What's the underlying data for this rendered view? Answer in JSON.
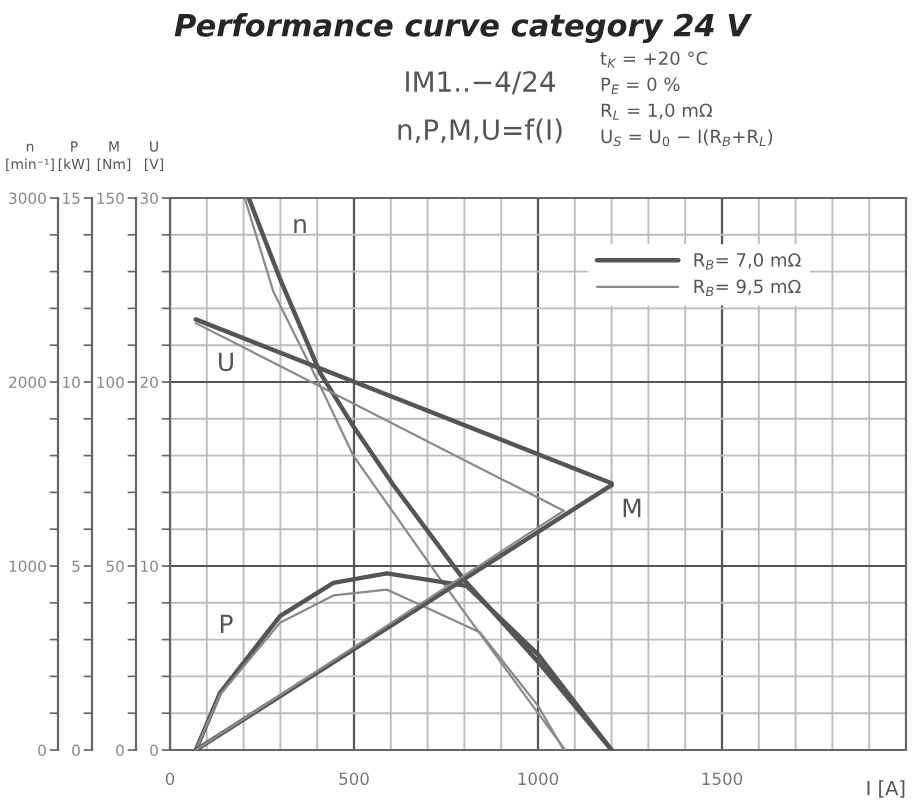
{
  "chart_data": [
    {
      "type": "line",
      "title": "Performance curve category 24 V",
      "xlabel": "I [A]",
      "ylabel": "n\n[min⁻¹]",
      "y2label": "P\n[kW]",
      "y3label": "M\n[Nm]",
      "xlim": [
        0,
        2000
      ],
      "xticks": [
        0,
        {
          "value": 100,
          "label": null
        },
        {
          "value": 200,
          "label": null
        },
        {
          "value": 300,
          "label": null
        },
        {
          "value": 400,
          "label": null
        },
        500,
        {
          "value": 600,
          "label": null
        },
        {
          "value": 700,
          "label": null
        },
        {
          "value": 800,
          "label": null
        },
        {
          "value": 900,
          "label": null
        },
        1000,
        {
          "value": 1100,
          "label": null
        },
        {
          "value": 1200,
          "label": null
        },
        {
          "value": 1300,
          "label": null
        },
        {
          "value": 1400,
          "label": null
        },
        1500,
        {
          "value": 1600,
          "label": null
        },
        {
          "value": 1700,
          "label": null
        },
        {
          "value": 1800,
          "label": null
        },
        {
          "value": 1900,
          "label": null
        },
        {
          "value": 2000,
          "label": null
        }
      ],
      "ylim": [
        0,
        3000
      ],
      "yticks": [
        0,
        {
          "value": 200,
          "label": null
        },
        {
          "value": 400,
          "label": null
        },
        {
          "value": 600,
          "label": null
        },
        {
          "value": 800,
          "label": null
        },
        1000,
        {
          "value": 1200,
          "label": null
        },
        {
          "value": 1400,
          "label": null
        },
        {
          "value": 1600,
          "label": null
        },
        {
          "value": 1800,
          "label": null
        },
        2000,
        {
          "value": 2200,
          "label": null
        },
        {
          "value": 2400,
          "label": null
        },
        {
          "value": 2600,
          "label": null
        },
        {
          "value": 2800,
          "label": null
        },
        3000
      ],
      "y2lim": [
        0,
        15
      ],
      "y2ticks": [
        0,
        {
          "value": 1,
          "label": null
        },
        {
          "value": 2,
          "label": null
        },
        {
          "value": 3,
          "label": null
        },
        {
          "value": 4,
          "label": null
        },
        5,
        {
          "value": 6,
          "label": null
        },
        {
          "value": 7,
          "label": null
        },
        {
          "value": 8,
          "label": null
        },
        {
          "value": 9,
          "label": null
        },
        10,
        {
          "value": 11,
          "label": null
        },
        {
          "value": 12,
          "label": null
        },
        {
          "value": 13,
          "label": null
        },
        {
          "value": 14,
          "label": null
        },
        15
      ],
      "y3lim": [
        0,
        150
      ],
      "y3ticks": [
        0,
        {
          "value": 10,
          "label": null
        },
        {
          "value": 20,
          "label": null
        },
        {
          "value": 30,
          "label": null
        },
        {
          "value": 40,
          "label": null
        },
        50,
        {
          "value": 60,
          "label": null
        },
        {
          "value": 70,
          "label": null
        },
        {
          "value": 80,
          "label": null
        },
        {
          "value": 90,
          "label": null
        },
        100,
        {
          "value": 110,
          "label": null
        },
        {
          "value": 120,
          "label": null
        },
        {
          "value": 130,
          "label": null
        },
        {
          "value": 140,
          "label": null
        },
        150
      ],
      "grid": true,
      "legend": "top right",
      "marker": "none",
      "line_style": "solid",
      "series": [
        {
          "name": "R$_{B}$= 7,0 mΩ",
          "color": "#555555",
          "x": [
            214,
            299,
            408,
            498,
            607,
            797,
            1000,
            1200
          ],
          "values": [
            3000,
            2560,
            2050,
            1760,
            1440,
            930,
            480,
            0
          ]
        },
        {
          "name": "R$_{B}$= 9,5 mΩ",
          "color": "#8a8a8a",
          "x": [
            203,
            281,
            408,
            498,
            734,
            1000,
            1074
          ],
          "values": [
            3000,
            2490,
            1980,
            1600,
            930,
            200,
            0
          ]
        },
        {
          "color": "#555555",
          "axis": "y2",
          "x": [
            70,
            136,
            299,
            444,
            589,
            806,
            1000,
            1200
          ],
          "values": [
            0,
            1.55,
            3.64,
            4.54,
            4.8,
            4.46,
            2.6,
            0
          ]
        },
        {
          "color": "#8a8a8a",
          "axis": "y2",
          "x": [
            70,
            136,
            299,
            444,
            589,
            842,
            1000,
            1070
          ],
          "values": [
            0,
            1.5,
            3.46,
            4.2,
            4.36,
            3.2,
            1.2,
            0
          ]
        },
        {
          "color": "#555555",
          "axis": "y3",
          "x": [
            70,
            1200
          ],
          "values": [
            0,
            72
          ]
        },
        {
          "color": "#8a8a8a",
          "axis": "y3",
          "x": [
            70,
            1070
          ],
          "values": [
            0,
            65
          ]
        }
      ],
      "annotations": [
        "IM1..−4/24",
        "n,P,M,U=f(I)",
        "t$_{K}$ = +20 °C",
        "P$_{E}$ = 0 %",
        "R$_{L}$ = 1,0 mΩ",
        "U$_{S}$ = U$_{0}$ − I(R$_{B}$+R$_{L}$)",
        "n",
        "P",
        "M"
      ]
    },
    {
      "type": "line",
      "ylabel": "U\n[V]",
      "xlim": [
        0,
        2000
      ],
      "tick_labels": "y",
      "ylim": [
        0,
        30
      ],
      "yticks": [
        0,
        {
          "value": 2,
          "label": null
        },
        {
          "value": 4,
          "label": null
        },
        {
          "value": 6,
          "label": null
        },
        {
          "value": 8,
          "label": null
        },
        10,
        {
          "value": 12,
          "label": null
        },
        {
          "value": 14,
          "label": null
        },
        {
          "value": 16,
          "label": null
        },
        {
          "value": 18,
          "label": null
        },
        20,
        {
          "value": 22,
          "label": null
        },
        {
          "value": 24,
          "label": null
        },
        {
          "value": 26,
          "label": null
        },
        {
          "value": 28,
          "label": null
        },
        30
      ],
      "marker": "none",
      "line_style": "solid",
      "series": [
        {
          "color": "#555555",
          "x": [
            70,
            1200
          ],
          "values": [
            23.4,
            14.5
          ]
        },
        {
          "color": "#8a8a8a",
          "x": [
            70,
            1070
          ],
          "values": [
            23.2,
            13.0
          ]
        }
      ],
      "annotations": [
        "U"
      ]
    }
  ]
}
